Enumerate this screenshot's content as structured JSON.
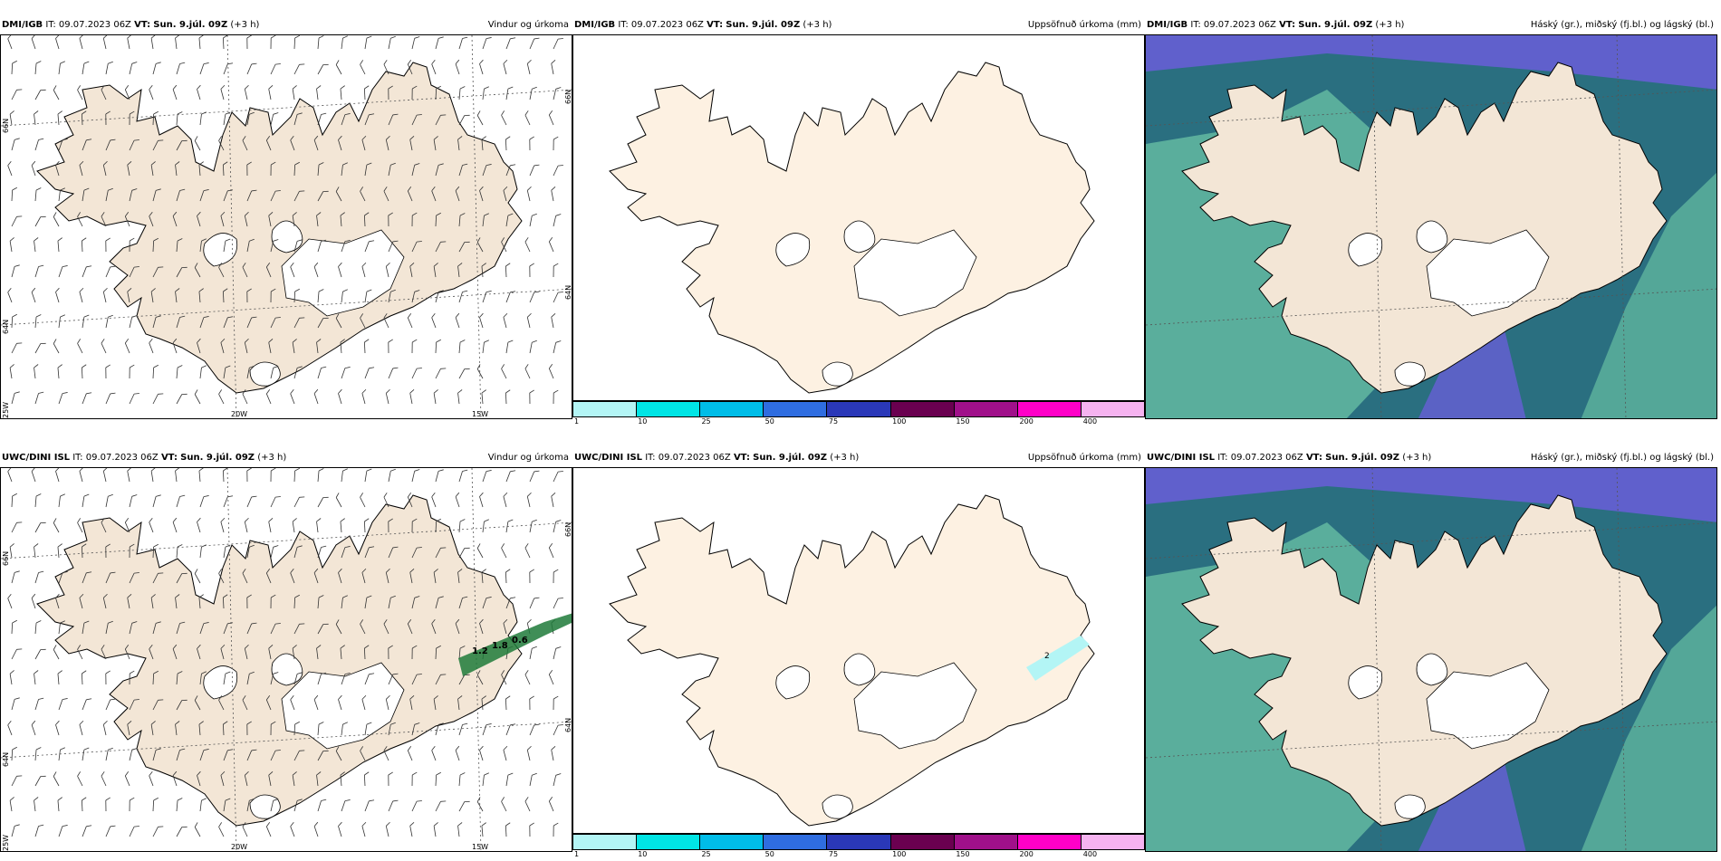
{
  "panels": [
    {
      "model": "DMI/IGB",
      "it_label": "IT:",
      "it": "09.07.2023 06Z",
      "vt_label": "VT:",
      "vt": "Sun. 9.júl. 09Z",
      "lead": "(+3 h)",
      "product": "Vindur og úrkoma",
      "type": "wind"
    },
    {
      "model": "DMI/IGB",
      "it_label": "IT:",
      "it": "09.07.2023 06Z",
      "vt_label": "VT:",
      "vt": "Sun. 9.júl. 09Z",
      "lead": "(+3 h)",
      "product": "Uppsöfnuð úrkoma (mm)",
      "type": "precip"
    },
    {
      "model": "DMI/IGB",
      "it_label": "IT:",
      "it": "09.07.2023 06Z",
      "vt_label": "VT:",
      "vt": "Sun. 9.júl. 09Z",
      "lead": "(+3 h)",
      "product": "Háský (gr.), miðský (fj.bl.) og lágský (bl.)",
      "type": "cloud"
    },
    {
      "model": "UWC/DINI ISL",
      "it_label": "IT:",
      "it": "09.07.2023 06Z",
      "vt_label": "VT:",
      "vt": "Sun. 9.júl. 09Z",
      "lead": "(+3 h)",
      "product": "Vindur og úrkoma",
      "type": "wind",
      "labels": [
        "1.2",
        "1.8",
        "0.6"
      ]
    },
    {
      "model": "UWC/DINI ISL",
      "it_label": "IT:",
      "it": "09.07.2023 06Z",
      "vt_label": "VT:",
      "vt": "Sun. 9.júl. 09Z",
      "lead": "(+3 h)",
      "product": "Uppsöfnuð úrkoma (mm)",
      "type": "precip",
      "labels": [
        "2"
      ]
    },
    {
      "model": "UWC/DINI ISL",
      "it_label": "IT:",
      "it": "09.07.2023 06Z",
      "vt_label": "VT:",
      "vt": "Sun. 9.júl. 09Z",
      "lead": "(+3 h)",
      "product": "Háský (gr.), miðský (fj.bl.) og lágský (bl.)",
      "type": "cloud"
    }
  ],
  "axes": {
    "lon": [
      "20W",
      "15W"
    ],
    "lat": [
      "66N",
      "64N"
    ],
    "lon_left": "25W",
    "lat_right": [
      "66N",
      "64N"
    ]
  },
  "colorbar": {
    "ticks": [
      "1",
      "10",
      "25",
      "50",
      "75",
      "100",
      "150",
      "200",
      "400"
    ],
    "colors": [
      "#b3f5f5",
      "#00e5e5",
      "#00bde8",
      "#2f6de0",
      "#2a38b8",
      "#6a0050",
      "#a0108a",
      "#ff00c8",
      "#f6b3f0"
    ]
  },
  "colors": {
    "land": "#f3e6d6",
    "land_snowless": "#fdf1e2",
    "ice": "#ffffff",
    "sea_high": "#2a6f80",
    "sea_mid": "#5fb59e",
    "low_cloud": "#6060cc"
  }
}
